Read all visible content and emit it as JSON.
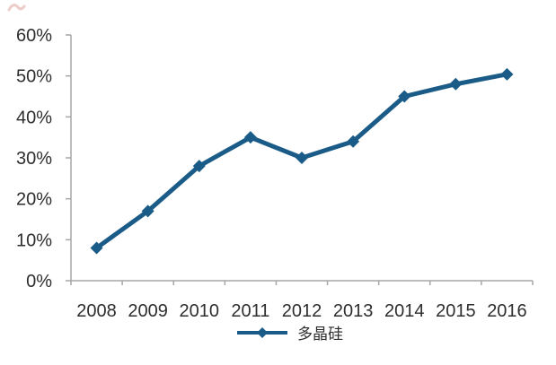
{
  "page": {
    "background": "#ffffff"
  },
  "artifact": {
    "color": "#d98f8a"
  },
  "chart_data": {
    "type": "line",
    "title": "",
    "xlabel": "",
    "ylabel": "",
    "categories": [
      "2008",
      "2009",
      "2010",
      "2011",
      "2012",
      "2013",
      "2014",
      "2015",
      "2016"
    ],
    "series": [
      {
        "name": "多晶硅",
        "values": [
          8,
          17,
          28,
          35,
          30,
          34,
          45,
          48,
          50.4
        ]
      }
    ],
    "ylim": [
      0,
      60
    ],
    "ytick_step": 10,
    "ytick_labels": [
      "0%",
      "10%",
      "20%",
      "30%",
      "40%",
      "50%",
      "60%"
    ],
    "grid": false,
    "legend_position": "bottom-center",
    "marker": "diamond",
    "line_color": "#1a5b87",
    "axis_color": "#a6a6a6",
    "text_color": "#2e2e2e"
  }
}
